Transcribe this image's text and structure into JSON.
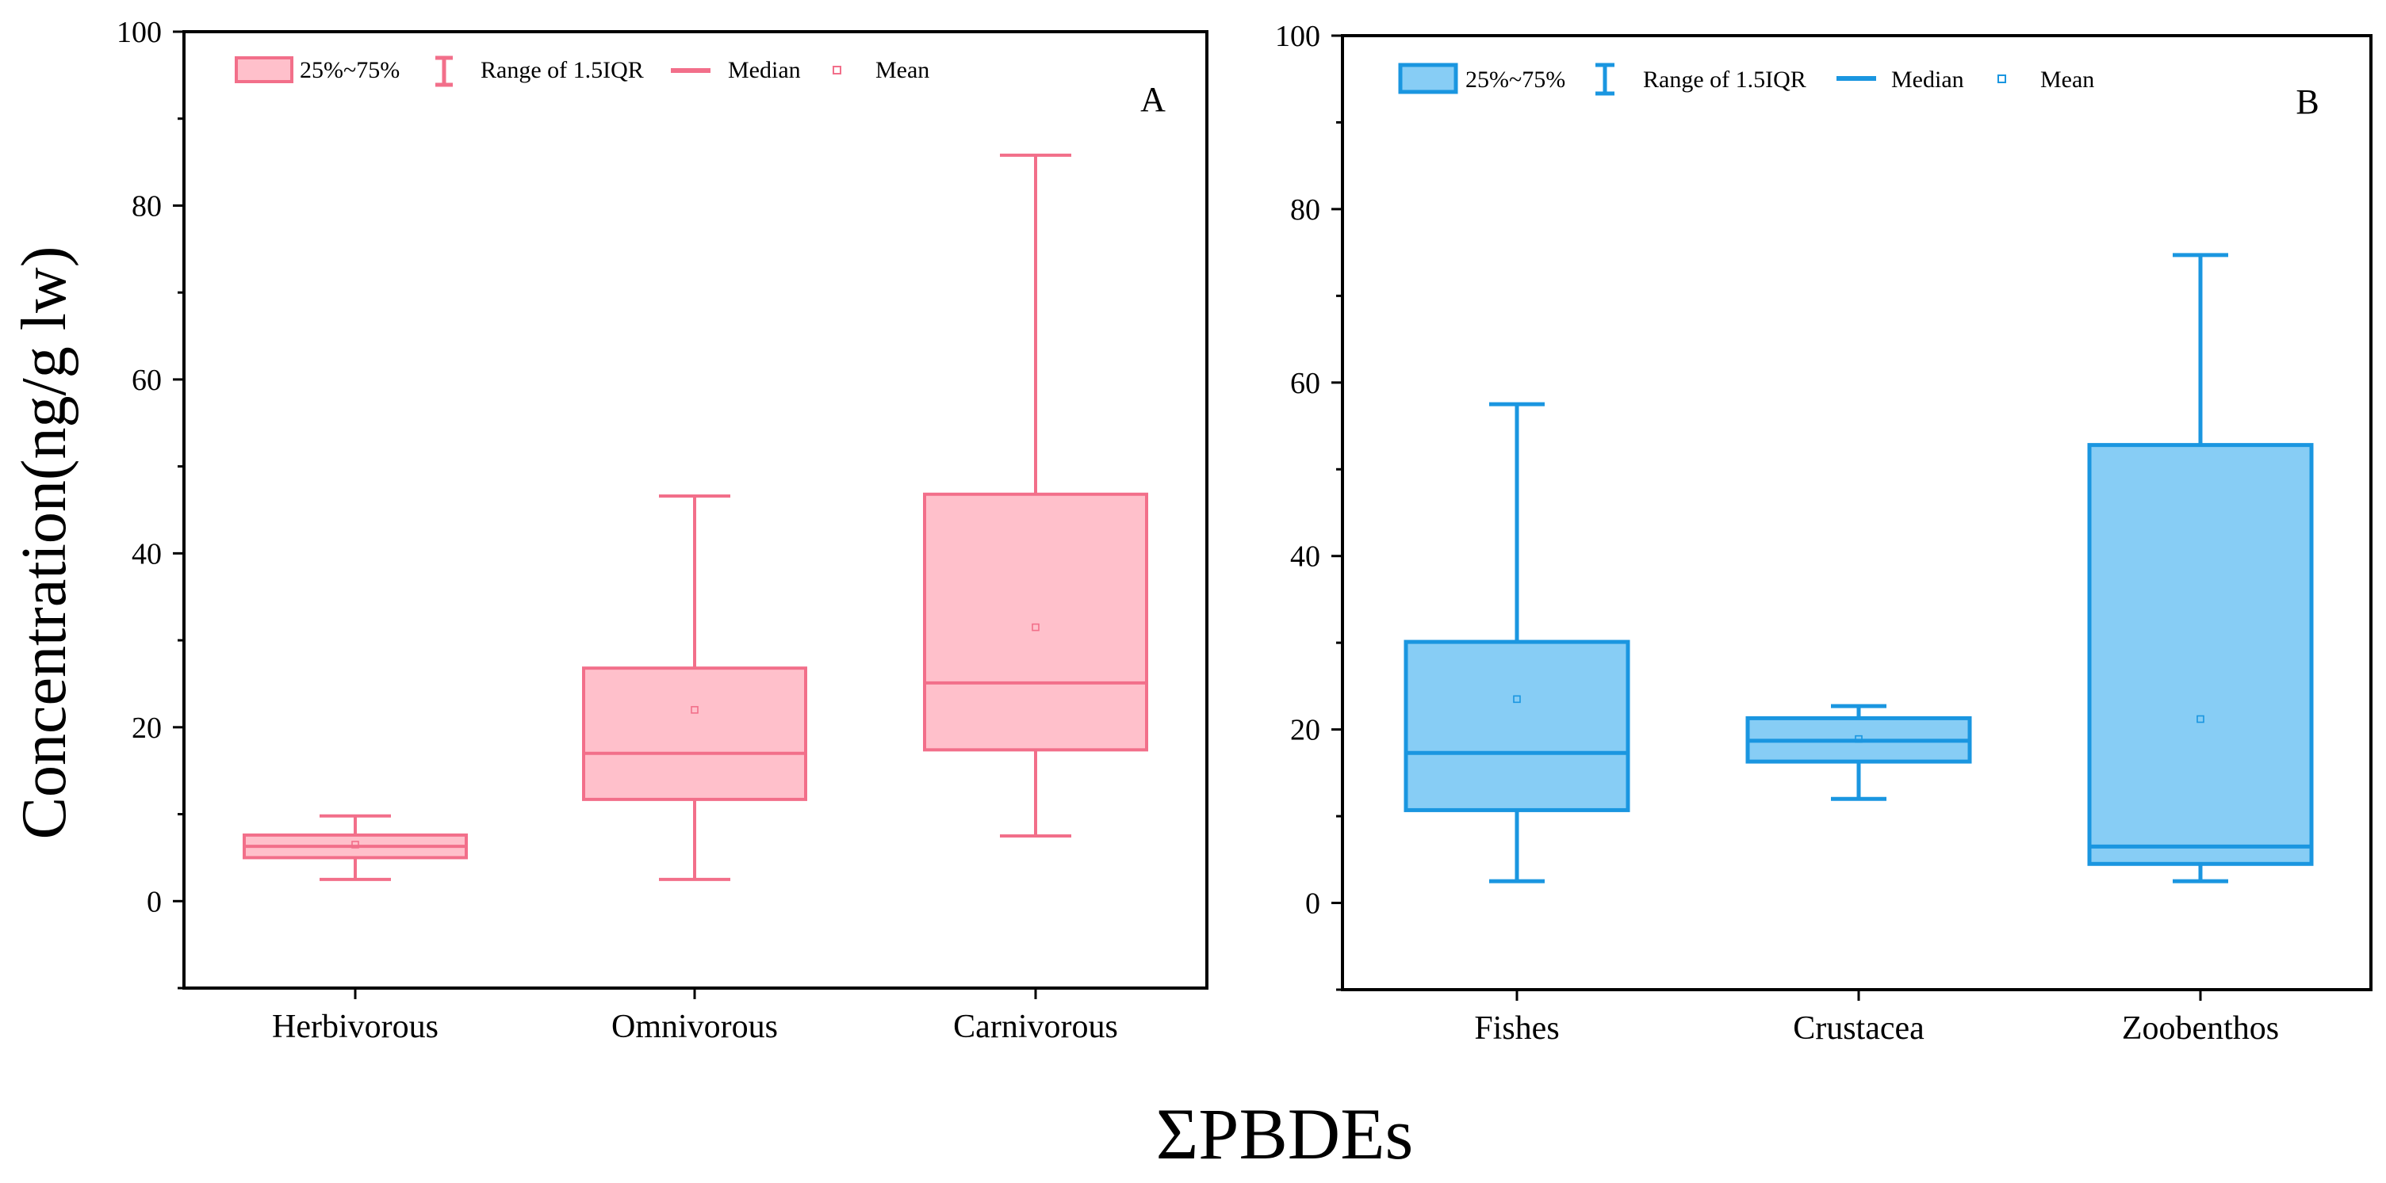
{
  "figure": {
    "xlabel": "ΣPBDEs",
    "ylabel": "Concentration(ng/g lw)"
  },
  "legend": {
    "box": "25%~75%",
    "range": "Range of 1.5IQR",
    "median": "Median",
    "mean": "Mean"
  },
  "chart_data": [
    {
      "type": "box",
      "panel": "A",
      "color": "#f26f8a",
      "fill": "#ffc0cb",
      "ylim": [
        -10,
        100
      ],
      "yticks": [
        0,
        20,
        40,
        60,
        80,
        100
      ],
      "categories": [
        "Herbivorous",
        "Omnivorous",
        "Carnivorous"
      ],
      "boxes": [
        {
          "whisker_low": 2.5,
          "q1": 5.0,
          "median": 6.3,
          "q3": 7.6,
          "whisker_high": 9.8,
          "mean": 6.5
        },
        {
          "whisker_low": 2.5,
          "q1": 11.7,
          "median": 17.0,
          "q3": 26.8,
          "whisker_high": 46.6,
          "mean": 22.0
        },
        {
          "whisker_low": 7.5,
          "q1": 17.4,
          "median": 25.1,
          "q3": 46.8,
          "whisker_high": 85.8,
          "mean": 31.5
        }
      ]
    },
    {
      "type": "box",
      "panel": "B",
      "color": "#1a96e0",
      "fill": "#87cdf5",
      "ylim": [
        -10,
        100
      ],
      "yticks": [
        0,
        20,
        40,
        60,
        80,
        100
      ],
      "categories": [
        "Fishes",
        "Crustacea",
        "Zoobenthos"
      ],
      "boxes": [
        {
          "whisker_low": 2.5,
          "q1": 10.7,
          "median": 17.3,
          "q3": 30.1,
          "whisker_high": 57.5,
          "mean": 23.5
        },
        {
          "whisker_low": 12.0,
          "q1": 16.3,
          "median": 18.7,
          "q3": 21.3,
          "whisker_high": 22.7,
          "mean": 18.9
        },
        {
          "whisker_low": 2.5,
          "q1": 4.5,
          "median": 6.5,
          "q3": 52.8,
          "whisker_high": 74.7,
          "mean": 21.2
        }
      ]
    }
  ]
}
